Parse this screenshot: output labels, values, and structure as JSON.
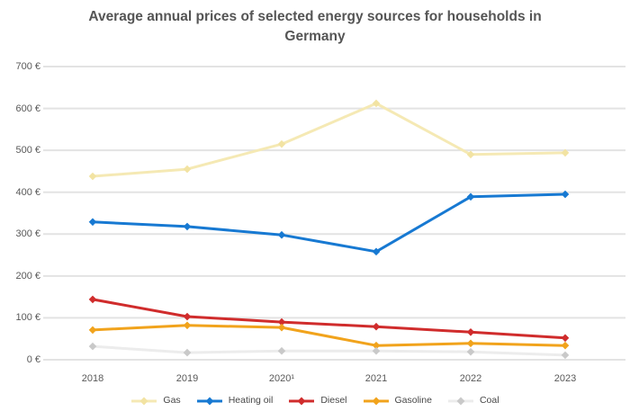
{
  "title": {
    "line1": "Average annual prices of selected energy sources for households in",
    "line2": "Germany"
  },
  "chart_data": {
    "type": "line",
    "title": "Average annual prices of selected energy sources for households in Germany",
    "categories": [
      "2018",
      "2019",
      "2020¹",
      "2021",
      "2022",
      "2023"
    ],
    "y_ticks": [
      "700 €",
      "600 €",
      "500 €",
      "400 €",
      "300 €",
      "200 €",
      "100 €",
      "0 €"
    ],
    "ylim": [
      0,
      700
    ],
    "grid": true,
    "grid_color": "#e3e3e3",
    "legend_position": "bottom",
    "marker": "diamond",
    "series": [
      {
        "name": "Gas",
        "color": "#f5e9b4",
        "marker_color": "#f2e3a2",
        "values": [
          438,
          455,
          515,
          612,
          490,
          494
        ]
      },
      {
        "name": "Heating oil",
        "color": "#1779d2",
        "marker_color": "#1779d2",
        "values": [
          329,
          318,
          298,
          258,
          389,
          395
        ]
      },
      {
        "name": "Diesel",
        "color": "#d02c2c",
        "marker_color": "#d02c2c",
        "values": [
          144,
          103,
          90,
          79,
          66,
          52
        ]
      },
      {
        "name": "Gasoline",
        "color": "#f1a31c",
        "marker_color": "#f1a31c",
        "values": [
          71,
          82,
          77,
          34,
          39,
          34
        ]
      },
      {
        "name": "Coal",
        "color": "#ececec",
        "marker_color": "#c9c9c9",
        "values": [
          32,
          17,
          21,
          21,
          19,
          11
        ]
      }
    ]
  }
}
